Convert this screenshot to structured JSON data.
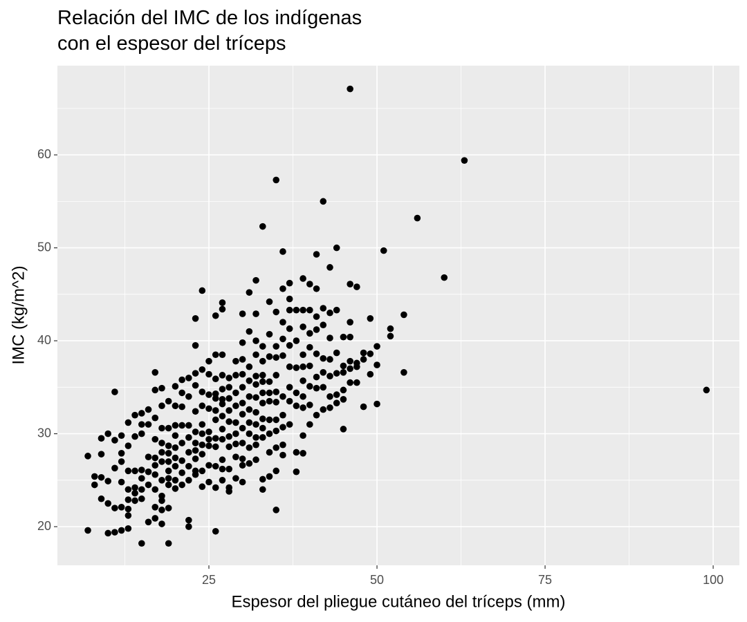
{
  "chart_data": {
    "type": "scatter",
    "title": "Relación del IMC de los indígenas\ncon el espesor del tríceps",
    "x_label": "Espesor del pliegue cutáneo del tríceps (mm)",
    "y_label": "IMC (kg/m^2)",
    "color": "#000000",
    "panel_color": "#ebebeb",
    "grid": true,
    "xlim": [
      2.47,
      103.9
    ],
    "ylim": [
      15.84,
      69.6
    ],
    "xticks": [
      25,
      50,
      75,
      100
    ],
    "yticks": [
      20,
      30,
      40,
      50,
      60
    ],
    "x_minor_grid": [
      12.5,
      37.5,
      62.5,
      87.5
    ],
    "y_minor_grid": [
      25,
      35,
      45,
      55,
      65
    ],
    "x": [
      7,
      7,
      8,
      8,
      9,
      9,
      9,
      9,
      10,
      10,
      10,
      10,
      11,
      11,
      11,
      11,
      11,
      12,
      12,
      12,
      12,
      12,
      12,
      13,
      13,
      13,
      13,
      13,
      13,
      13,
      13,
      14,
      14,
      14,
      14,
      14,
      14,
      15,
      15,
      15,
      15,
      15,
      15,
      15,
      15,
      16,
      16,
      16,
      16,
      16,
      16,
      17,
      17,
      17,
      17,
      17,
      17,
      17,
      17,
      17,
      17,
      18,
      18,
      18,
      18,
      18,
      18,
      18,
      18,
      18,
      18,
      18,
      19,
      19,
      19,
      19,
      19,
      19,
      19,
      19,
      19,
      19,
      20,
      20,
      20,
      20,
      20,
      20,
      20,
      20,
      20,
      21,
      21,
      21,
      21,
      21,
      21,
      21,
      21,
      22,
      22,
      22,
      22,
      22,
      22,
      22,
      22,
      22,
      23,
      23,
      23,
      23,
      23,
      23,
      23,
      23,
      23,
      23,
      23,
      24,
      24,
      24,
      24,
      24,
      24,
      24,
      24,
      24,
      24,
      25,
      25,
      25,
      25,
      25,
      25,
      25,
      25,
      25,
      26,
      26,
      26,
      26,
      26,
      26,
      26,
      26,
      26,
      26,
      26,
      26,
      27,
      27,
      27,
      27,
      27,
      27,
      27,
      27,
      27,
      27,
      27,
      27,
      27,
      28,
      28,
      28,
      28,
      28,
      28,
      28,
      28,
      28,
      28,
      29,
      29,
      29,
      29,
      29,
      29,
      29,
      29,
      29,
      30,
      30,
      30,
      30,
      30,
      30,
      30,
      30,
      30,
      30,
      30,
      30,
      31,
      31,
      31,
      31,
      31,
      31,
      31,
      31,
      31,
      31,
      32,
      32,
      32,
      32,
      32,
      32,
      32,
      32,
      32,
      32,
      32,
      32,
      33,
      33,
      33,
      33,
      33,
      33,
      33,
      33,
      33,
      33,
      33,
      33,
      34,
      34,
      34,
      34,
      34,
      34,
      34,
      34,
      34,
      34,
      35,
      35,
      35,
      35,
      35,
      35,
      35,
      35,
      35,
      35,
      35,
      35,
      36,
      36,
      36,
      36,
      36,
      36,
      36,
      36,
      36,
      36,
      37,
      37,
      37,
      37,
      37,
      37,
      37,
      37,
      37,
      38,
      38,
      38,
      38,
      38,
      38,
      38,
      39,
      39,
      39,
      39,
      39,
      39,
      39,
      39,
      39,
      39,
      40,
      40,
      40,
      40,
      40,
      40,
      40,
      40,
      41,
      41,
      41,
      41,
      41,
      41,
      41,
      41,
      42,
      42,
      42,
      42,
      42,
      42,
      42,
      43,
      43,
      43,
      43,
      43,
      43,
      43,
      44,
      44,
      44,
      44,
      44,
      44,
      45,
      45,
      45,
      45,
      45,
      45,
      46,
      46,
      46,
      46,
      46,
      46,
      46,
      47,
      47,
      47,
      47,
      48,
      48,
      48,
      49,
      49,
      49,
      50,
      50,
      50,
      51,
      52,
      52,
      54,
      54,
      56,
      60,
      63,
      99
    ],
    "values": [
      19.6,
      27.6,
      24.5,
      25.4,
      23.0,
      25.3,
      27.8,
      29.5,
      30.0,
      22.5,
      19.3,
      24.9,
      34.5,
      29.3,
      26.3,
      19.4,
      22.0,
      29.8,
      27.9,
      27.0,
      24.8,
      22.1,
      19.6,
      31.2,
      28.7,
      26.0,
      24.0,
      22.9,
      21.9,
      21.2,
      19.8,
      32.0,
      29.7,
      26.0,
      24.2,
      23.6,
      22.8,
      32.2,
      31.0,
      30.0,
      26.1,
      25.2,
      24.0,
      23.0,
      18.2,
      32.6,
      31.0,
      27.5,
      25.9,
      24.5,
      20.5,
      36.6,
      34.7,
      31.7,
      29.4,
      27.4,
      26.6,
      25.6,
      24.0,
      22.1,
      20.9,
      34.9,
      33.0,
      30.6,
      29.0,
      28.0,
      27.0,
      25.0,
      23.3,
      22.8,
      21.8,
      20.3,
      33.5,
      30.6,
      28.7,
      27.9,
      27.0,
      26.0,
      25.2,
      24.5,
      22.0,
      18.2,
      35.1,
      33.0,
      30.9,
      29.8,
      28.5,
      27.4,
      26.5,
      25.0,
      24.1,
      35.8,
      34.4,
      32.9,
      30.9,
      29.0,
      27.1,
      25.8,
      24.5,
      36.0,
      34.0,
      30.9,
      29.6,
      28.0,
      26.5,
      25.0,
      20.7,
      20.0,
      42.4,
      39.5,
      36.5,
      35.2,
      32.4,
      30.2,
      29.0,
      28.2,
      27.3,
      26.0,
      25.6,
      45.4,
      36.9,
      34.5,
      33.0,
      31.0,
      30.0,
      28.8,
      27.8,
      26.0,
      24.3,
      37.8,
      36.4,
      34.2,
      32.7,
      30.2,
      29.4,
      28.7,
      26.6,
      24.8,
      42.7,
      38.5,
      35.9,
      34.3,
      33.8,
      32.5,
      31.5,
      29.5,
      28.6,
      26.5,
      24.2,
      19.5,
      44.1,
      43.4,
      38.5,
      36.3,
      34.8,
      33.7,
      33.2,
      31.9,
      30.5,
      29.4,
      27.2,
      26.2,
      25.0,
      36.0,
      35.0,
      33.8,
      32.5,
      31.3,
      29.7,
      28.6,
      26.2,
      24.2,
      23.8,
      37.8,
      36.3,
      34.4,
      33.0,
      31.2,
      30.0,
      28.9,
      27.5,
      25.2,
      42.9,
      39.8,
      38.0,
      36.4,
      35.0,
      33.3,
      32.1,
      30.6,
      29.0,
      27.3,
      26.6,
      24.8,
      45.2,
      41.0,
      37.2,
      35.7,
      34.0,
      32.6,
      31.2,
      30.0,
      28.5,
      26.8,
      46.5,
      42.9,
      40.0,
      38.5,
      36.2,
      35.3,
      33.9,
      32.3,
      31.0,
      29.6,
      28.8,
      27.2,
      52.3,
      39.4,
      37.8,
      36.3,
      35.6,
      34.4,
      33.3,
      31.6,
      30.6,
      29.6,
      25.1,
      24.0,
      44.2,
      40.7,
      38.3,
      35.6,
      34.4,
      33.5,
      31.5,
      30.0,
      28.0,
      25.4,
      57.3,
      43.1,
      39.4,
      38.2,
      36.3,
      34.5,
      33.4,
      31.5,
      30.3,
      28.5,
      26.0,
      21.8,
      49.6,
      45.6,
      42.0,
      40.2,
      38.4,
      34.0,
      32.0,
      30.7,
      28.8,
      27.7,
      46.2,
      44.5,
      43.3,
      41.3,
      39.5,
      37.2,
      35.0,
      33.5,
      31.0,
      43.3,
      40.0,
      37.1,
      34.4,
      33.0,
      28.0,
      25.9,
      46.7,
      43.3,
      41.5,
      38.5,
      37.2,
      35.7,
      34.0,
      32.8,
      29.8,
      27.9,
      46.1,
      43.3,
      40.8,
      39.3,
      37.3,
      35.1,
      33.1,
      31.0,
      49.3,
      45.6,
      42.6,
      41.2,
      38.6,
      36.1,
      34.9,
      32.0,
      55.0,
      43.5,
      41.7,
      38.1,
      36.6,
      35.0,
      32.6,
      47.9,
      43.0,
      40.3,
      38.0,
      36.2,
      34.0,
      32.8,
      50.0,
      43.3,
      38.7,
      36.5,
      34.2,
      33.3,
      40.4,
      37.3,
      36.6,
      34.7,
      33.7,
      30.5,
      67.1,
      46.1,
      42.0,
      40.4,
      37.8,
      37.0,
      35.5,
      45.8,
      37.6,
      37.2,
      35.5,
      38.7,
      38.0,
      32.9,
      42.4,
      38.6,
      36.4,
      39.4,
      37.4,
      33.2,
      49.7,
      41.3,
      40.5,
      42.8,
      36.6,
      53.2,
      46.8,
      59.4,
      34.7
    ]
  }
}
